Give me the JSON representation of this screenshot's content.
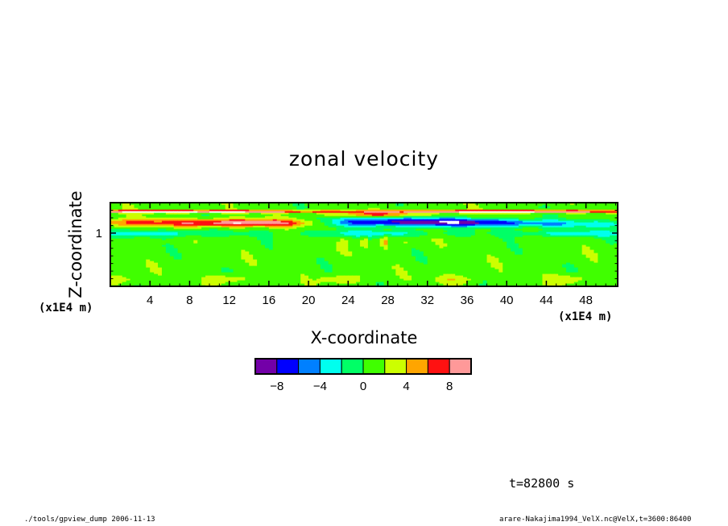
{
  "colors": {
    "levels": [
      "#7300a8",
      "#0000ff",
      "#0080ff",
      "#00ffee",
      "#00ff66",
      "#40ff00",
      "#ccff00",
      "#ffa500",
      "#ff1111",
      "#ff9999"
    ],
    "out_of_range": "#ffffff"
  },
  "chart_data": {
    "type": "heatmap",
    "title": "zonal velocity",
    "xlabel": "X-coordinate",
    "ylabel": "Z-coordinate",
    "x_unit": "(x1E4 m)",
    "y_unit": "(x1E4 m)",
    "xlim": [
      0,
      51.2
    ],
    "ylim": [
      0.3,
      1.4
    ],
    "xticks": [
      4,
      8,
      12,
      16,
      20,
      24,
      28,
      32,
      36,
      40,
      44,
      48
    ],
    "yticks": [
      1
    ],
    "colorbar": {
      "boundaries": [
        -10,
        -8,
        -6,
        -4,
        -2,
        0,
        2,
        4,
        6,
        8,
        10
      ],
      "tick_labels": [
        "-8",
        "-4",
        "0",
        "4",
        "8"
      ],
      "tick_values": [
        -8,
        -4,
        0,
        4,
        8
      ]
    },
    "field_description_approx": {
      "background_value": 1,
      "bands": [
        {
          "z": [
            1.22,
            1.3
          ],
          "x": [
            0,
            51.2
          ],
          "value": 5,
          "note": "upper jet band"
        },
        {
          "z": [
            1.08,
            1.22
          ],
          "x": [
            0,
            22
          ],
          "value": 7,
          "note": "strong positive layer, red core near x=8-18"
        },
        {
          "z": [
            1.05,
            1.22
          ],
          "x": [
            20,
            51.2
          ],
          "value": -7,
          "note": "negative core (blue/purple) x=20-44"
        },
        {
          "z": [
            0.95,
            1.05
          ],
          "x": [
            0,
            51.2
          ],
          "value": -3,
          "note": "cyan shear band"
        },
        {
          "z": [
            0.3,
            0.45
          ],
          "x": [
            0,
            51.2
          ],
          "value": 3,
          "note": "near-surface yellow patches"
        }
      ]
    }
  },
  "labels": {
    "time": "t=82800 s",
    "footer_left": "./tools/gpview_dump  2006-11-13",
    "footer_right": "arare-Nakajima1994_VelX.nc@VelX,t=3600:86400"
  }
}
